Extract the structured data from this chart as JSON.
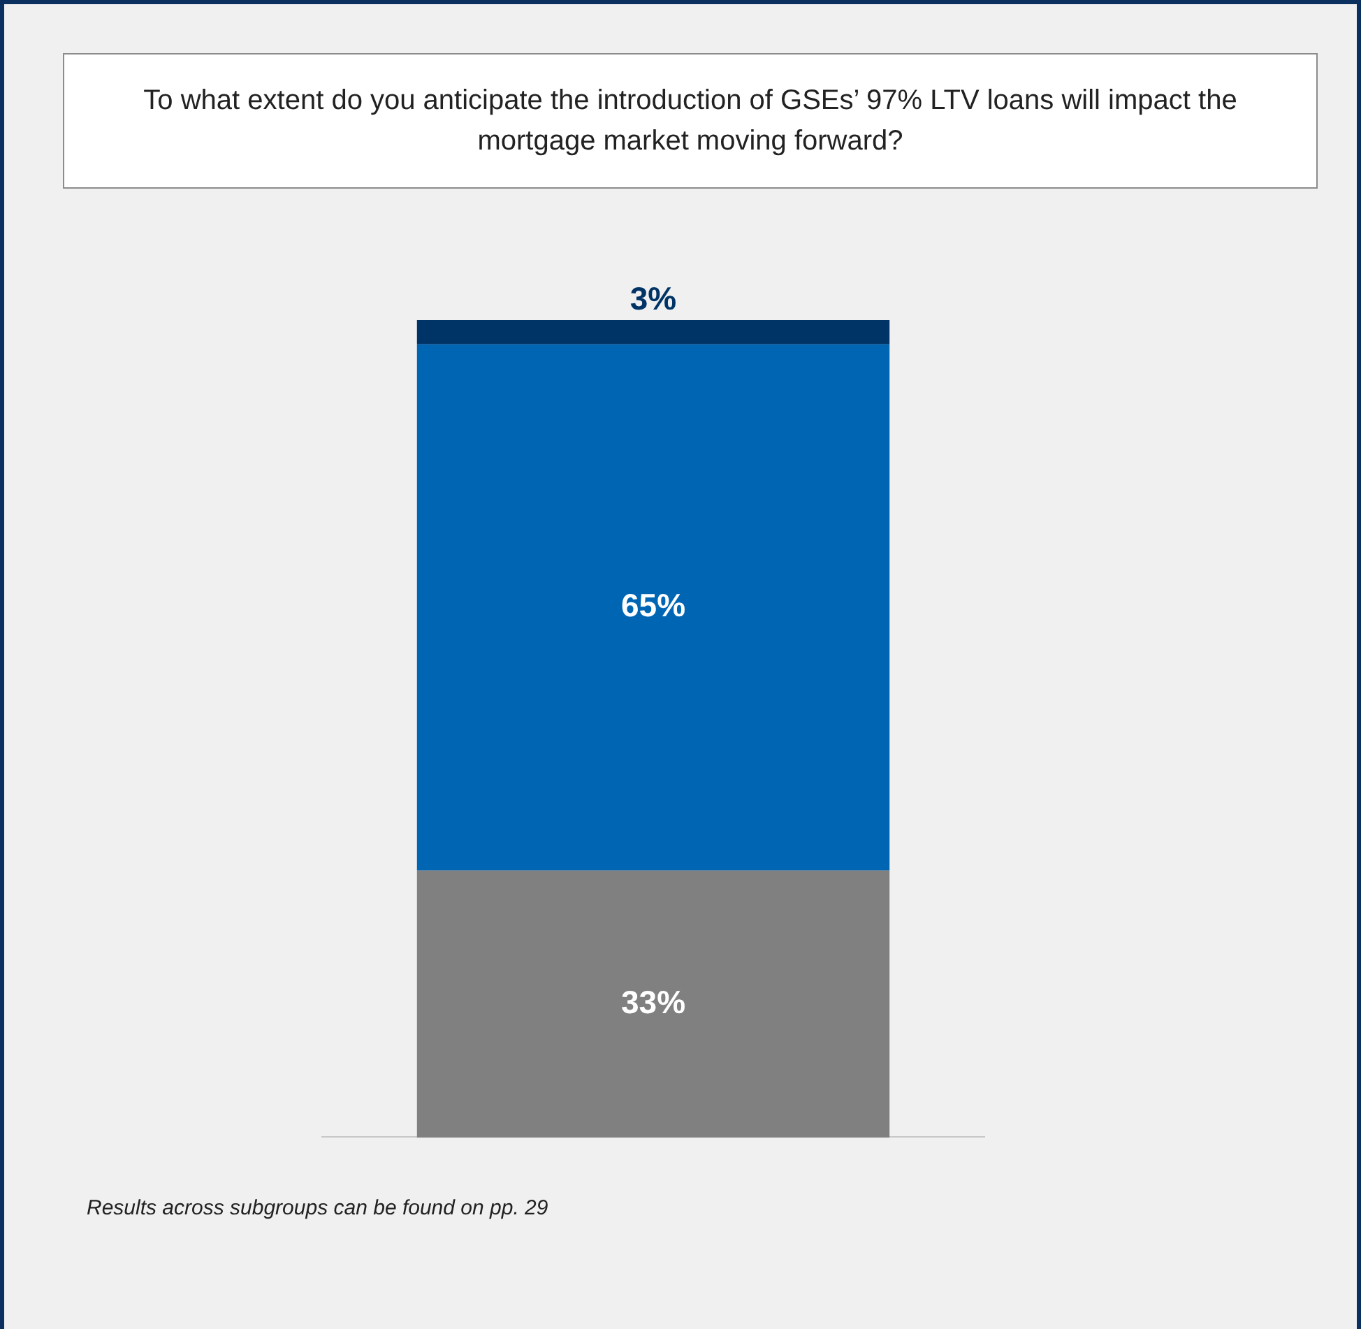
{
  "chart_data": {
    "type": "bar",
    "title": "To what extent do you anticipate the introduction of GSEs’ 97% LTV loans will impact the mortgage market moving forward?",
    "categories": [
      null
    ],
    "stacked": true,
    "legend": false,
    "grid": false,
    "tick_labels": false,
    "series": [
      {
        "color": "#808080",
        "values": [
          33
        ],
        "value_labels": [
          "33%"
        ]
      },
      {
        "color": "#0066b3",
        "values": [
          65
        ],
        "value_labels": [
          "65%"
        ]
      },
      {
        "color": "#003366",
        "values": [
          3
        ],
        "value_labels": [
          "3%"
        ]
      }
    ],
    "annotations": [
      "Results across subgroups can be found on pp. 29"
    ]
  }
}
